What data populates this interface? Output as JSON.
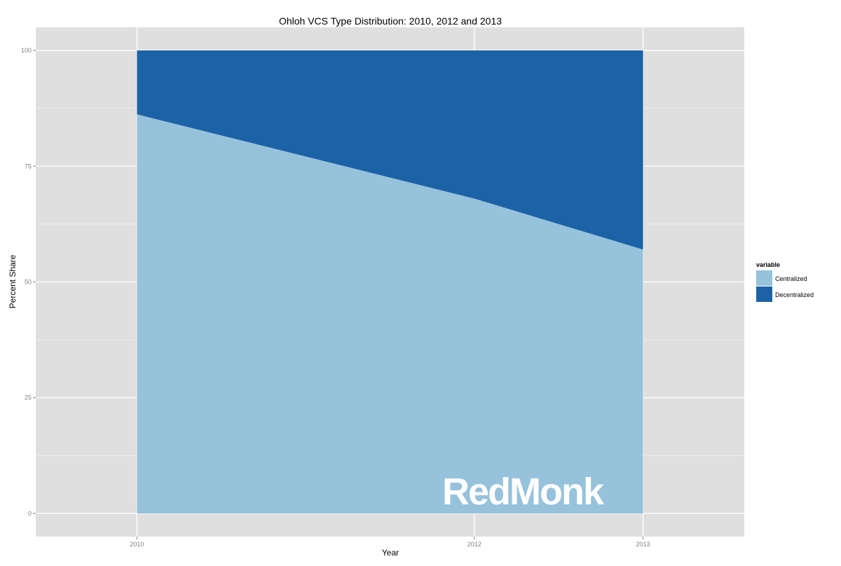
{
  "chart_data": {
    "type": "area",
    "stacked": true,
    "title": "Ohloh VCS Type Distribution: 2010, 2012 and 2013",
    "xlabel": "Year",
    "ylabel": "Percent Share",
    "x": [
      2010,
      2012,
      2013
    ],
    "x_tick_labels": [
      "2010",
      "2012",
      "2013"
    ],
    "xlim": [
      2009.4,
      2013.6
    ],
    "ylim": [
      -5,
      105
    ],
    "y_ticks": [
      0,
      25,
      50,
      75,
      100
    ],
    "y_tick_labels": [
      "0",
      "25",
      "50",
      "75",
      "100"
    ],
    "grid": true,
    "legend": {
      "title": "variable",
      "position": "right"
    },
    "series": [
      {
        "name": "Centralized",
        "values": [
          86.2,
          68.0,
          57.0
        ],
        "color": "#96c2dc"
      },
      {
        "name": "Decentralized",
        "values": [
          13.8,
          32.0,
          43.0
        ],
        "color": "#1c62a6"
      }
    ],
    "colors": {
      "panel_background": "#dfdfdf",
      "grid_major": "#ffffff",
      "grid_minor": "#ececec"
    }
  },
  "watermark": {
    "text": "RedMonk"
  }
}
